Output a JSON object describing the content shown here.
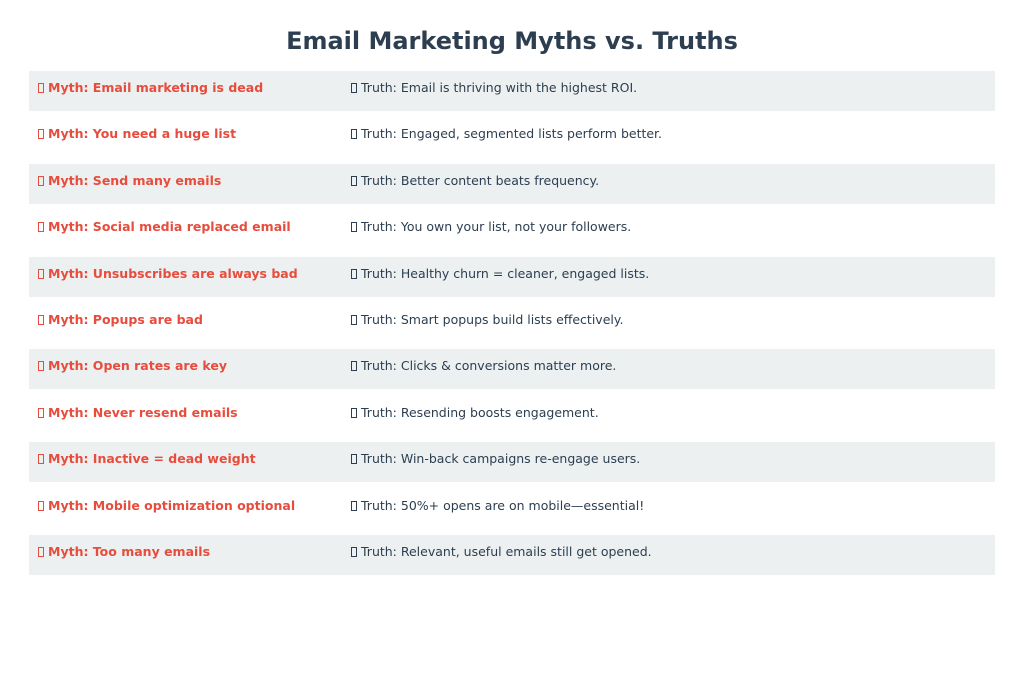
{
  "title": "Email Marketing Myths vs. Truths",
  "colors": {
    "myth": "#e74c3c",
    "truth": "#2c3e50",
    "stripe": "#ecf0f1"
  },
  "rows": [
    {
      "myth": "Myth: Email marketing is dead",
      "truth": "Truth: Email is thriving with the highest ROI."
    },
    {
      "myth": "Myth: You need a huge list",
      "truth": "Truth: Engaged, segmented lists perform better."
    },
    {
      "myth": "Myth: Send many emails",
      "truth": "Truth: Better content beats frequency."
    },
    {
      "myth": "Myth: Social media replaced email",
      "truth": "Truth: You own your list, not your followers."
    },
    {
      "myth": "Myth: Unsubscribes are always bad",
      "truth": "Truth: Healthy churn = cleaner, engaged lists."
    },
    {
      "myth": "Myth: Popups are bad",
      "truth": "Truth: Smart popups build lists effectively."
    },
    {
      "myth": "Myth: Open rates are key",
      "truth": "Truth: Clicks & conversions matter more."
    },
    {
      "myth": "Myth: Never resend emails",
      "truth": "Truth: Resending boosts engagement."
    },
    {
      "myth": "Myth: Inactive = dead weight",
      "truth": "Truth: Win-back campaigns re-engage users."
    },
    {
      "myth": "Myth: Mobile optimization optional",
      "truth": "Truth: 50%+ opens are on mobile—essential!"
    },
    {
      "myth": "Myth: Too many emails",
      "truth": "Truth: Relevant, useful emails still get opened."
    }
  ]
}
